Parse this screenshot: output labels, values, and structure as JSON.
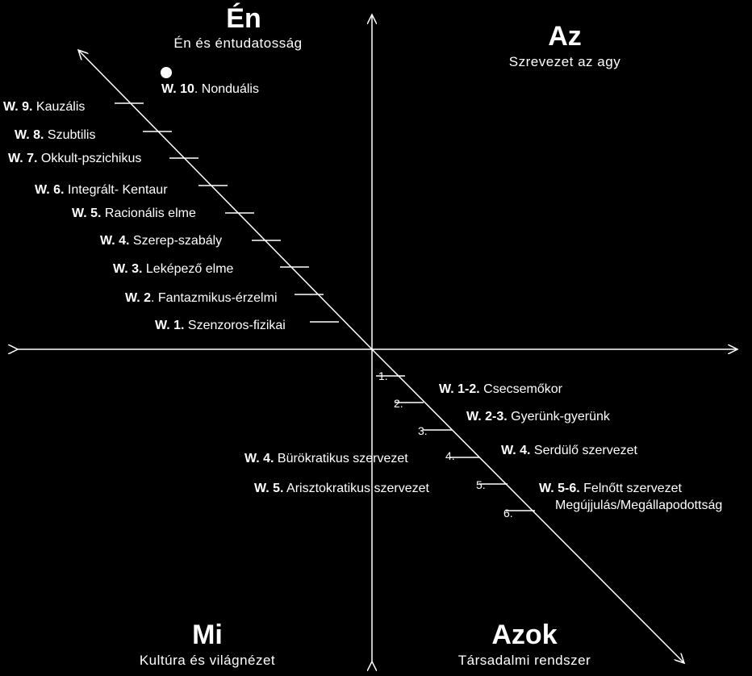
{
  "quadrants": {
    "top_left": {
      "title": "Én",
      "subtitle": "Én és éntudatosság"
    },
    "top_right": {
      "title": "Az",
      "subtitle": "Szrevezet az agy"
    },
    "bottom_left": {
      "title": "Mi",
      "subtitle": "Kultúra és világnézet"
    },
    "bottom_right": {
      "title": "Azok",
      "subtitle": "Társadalmi rendszer"
    }
  },
  "upper_levels": [
    {
      "code": "W. 1.",
      "name": "Szenzoros-fizikai"
    },
    {
      "code": "W. 2",
      "name": ". Fantazmikus-érzelmi"
    },
    {
      "code": "W. 3.",
      "name": "Leképező elme"
    },
    {
      "code": "W. 4.",
      "name": "Szerep-szabály"
    },
    {
      "code": "W. 5.",
      "name": "Racionális elme"
    },
    {
      "code": "W. 6.",
      "name": "Integrált- Kentaur"
    },
    {
      "code": "W. 7.",
      "name": "Okkult-pszichikus"
    },
    {
      "code": "W. 8.",
      "name": "Szubtilis"
    },
    {
      "code": "W. 9.",
      "name": "Kauzális"
    },
    {
      "code": "W. 10",
      "name": ". Nonduális"
    }
  ],
  "lower_ticks": [
    "1.",
    "2.",
    "3.",
    "4.",
    "5.",
    "6."
  ],
  "lower_right_labels": [
    {
      "code": "W. 1-2.",
      "name": "Csecsemőkor"
    },
    {
      "code": "W. 2-3.",
      "name": "Gyerünk-gyerünk"
    },
    {
      "code": "W. 4.",
      "name": "Serdülő szervezet"
    },
    {
      "code": "W. 5-6.",
      "name": "Felnőtt szervezet"
    }
  ],
  "lower_right_extra": "Megújjulás/Megállapodottság",
  "lower_left_labels": [
    {
      "code": "W. 4.",
      "name": "Bürökratikus szervezet"
    },
    {
      "code": "W. 5.",
      "name": "Arisztokratikus szervezet"
    }
  ]
}
